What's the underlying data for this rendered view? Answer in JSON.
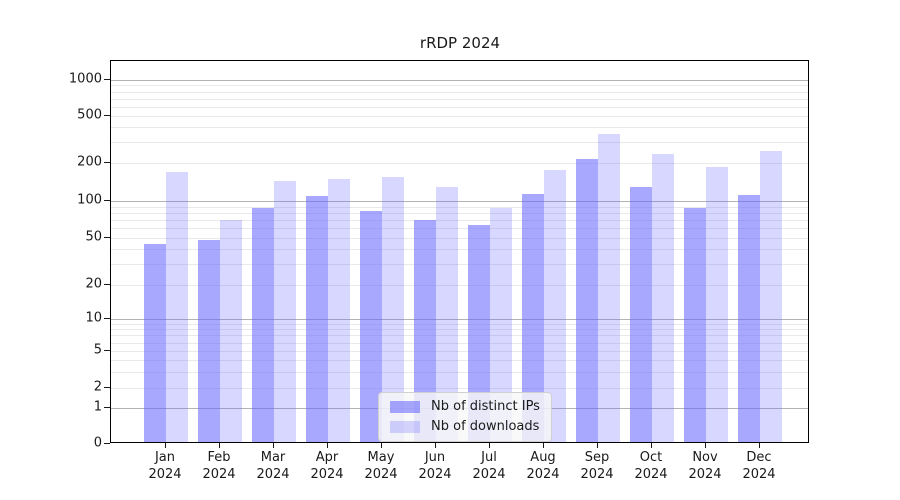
{
  "window": {
    "title": "rRDP 2024"
  },
  "chart_data": {
    "type": "bar",
    "title": "rRDP 2024",
    "categories": [
      "Jan 2024",
      "Feb 2024",
      "Mar 2024",
      "Apr 2024",
      "May 2024",
      "Jun 2024",
      "Jul 2024",
      "Aug 2024",
      "Sep 2024",
      "Oct 2024",
      "Nov 2024",
      "Dec 2024"
    ],
    "series": [
      {
        "name": "Nb of distinct IPs",
        "color": "#6666FF",
        "opacity": 0.57,
        "values": [
          43,
          46,
          85,
          105,
          80,
          68,
          61,
          110,
          210,
          125,
          85,
          107
        ]
      },
      {
        "name": "Nb of downloads",
        "color": "#6666FF",
        "opacity": 0.26,
        "values": [
          165,
          68,
          138,
          145,
          150,
          125,
          85,
          170,
          340,
          230,
          180,
          245
        ]
      }
    ],
    "xlabel": "",
    "ylabel": "",
    "yscale": "symlog",
    "ylim": [
      0,
      1000
    ],
    "y_ticks": [
      0,
      1,
      2,
      5,
      10,
      20,
      50,
      100,
      200,
      500,
      1000
    ],
    "grid": "horizontal, log minor gridlines, darker lines at 1/10/100/1000",
    "legend_position": "lower center inside plot",
    "colors": {
      "grid_major": "#b3b3b3",
      "grid_minor": "#e9e9e9",
      "axis": "#000000",
      "text": "#1a1a1a"
    }
  }
}
